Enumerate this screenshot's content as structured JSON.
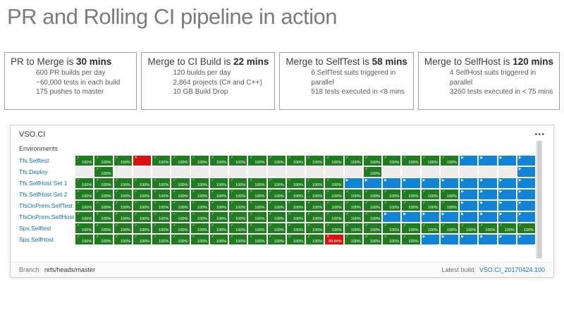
{
  "page": {
    "title": "PR and Rolling CI pipeline in action"
  },
  "stats": [
    {
      "title_prefix": "PR to Merge is ",
      "title_bold": "30 mins",
      "lines": [
        "600 PR builds per day",
        "~60,000 tests in each build",
        "175 pushes to master"
      ]
    },
    {
      "title_prefix": "Merge to CI Build is ",
      "title_bold": "22 mins",
      "lines": [
        "120 builds per day",
        "2,864 projects (C# and C++)",
        "10 GB Build Drop"
      ]
    },
    {
      "title_prefix": "Merge to SelfTest is ",
      "title_bold": "58 mins",
      "lines": [
        "6 SelfTest suits triggered in parallel",
        "518 tests executed in <8 mins"
      ]
    },
    {
      "title_prefix": "Merge to SelfHost is ",
      "title_bold": "120 mins",
      "lines": [
        "4 SelfHost suits triggered in parallel",
        "3260 tests executed in < 75 mins"
      ]
    }
  ],
  "panel": {
    "title": "VSO.CI",
    "menu_icon": "•••",
    "environments_label": "Environments",
    "rows": [
      {
        "label": "Tfs.Selftest",
        "cells": [
          [
            "g",
            "100%"
          ],
          [
            "g",
            "100%"
          ],
          [
            "g",
            "100%"
          ],
          [
            "r",
            ""
          ],
          [
            "g",
            "100%"
          ],
          [
            "g",
            "100%"
          ],
          [
            "g",
            "100%"
          ],
          [
            "g",
            "100%"
          ],
          [
            "g",
            "100%"
          ],
          [
            "g",
            "100%"
          ],
          [
            "g",
            "100%"
          ],
          [
            "g",
            "100%"
          ],
          [
            "g",
            "100%"
          ],
          [
            "g",
            "100%"
          ],
          [
            "g",
            "100%"
          ],
          [
            "g",
            "100%"
          ],
          [
            "g",
            "100%"
          ],
          [
            "g",
            "100%"
          ],
          [
            "g",
            "100%"
          ],
          [
            "g",
            "100%"
          ],
          [
            "b",
            ""
          ],
          [
            "b",
            ""
          ],
          [
            "b",
            ""
          ],
          [
            "b",
            ""
          ]
        ]
      },
      {
        "label": "Tfs.Deploy",
        "cells": [
          [
            "e",
            ""
          ],
          [
            "g",
            "100%"
          ],
          [
            "e",
            ""
          ],
          [
            "e",
            ""
          ],
          [
            "e",
            ""
          ],
          [
            "e",
            ""
          ],
          [
            "e",
            ""
          ],
          [
            "e",
            ""
          ],
          [
            "e",
            ""
          ],
          [
            "e",
            ""
          ],
          [
            "e",
            ""
          ],
          [
            "e",
            ""
          ],
          [
            "e",
            ""
          ],
          [
            "e",
            ""
          ],
          [
            "e",
            ""
          ],
          [
            "g",
            "100%"
          ],
          [
            "e",
            ""
          ],
          [
            "e",
            ""
          ],
          [
            "e",
            ""
          ],
          [
            "e",
            ""
          ],
          [
            "e",
            ""
          ],
          [
            "e",
            ""
          ],
          [
            "e",
            ""
          ],
          [
            "b",
            ""
          ]
        ]
      },
      {
        "label": "Tfs.SelfHost Set 1",
        "cells": [
          [
            "g",
            "100%"
          ],
          [
            "g",
            "100%"
          ],
          [
            "g",
            "100%"
          ],
          [
            "g",
            "100%"
          ],
          [
            "g",
            "100%"
          ],
          [
            "g",
            "100%"
          ],
          [
            "g",
            "100%"
          ],
          [
            "g",
            "100%"
          ],
          [
            "g",
            "100%"
          ],
          [
            "g",
            "100%"
          ],
          [
            "g",
            "100%"
          ],
          [
            "g",
            "100%"
          ],
          [
            "g",
            "100%"
          ],
          [
            "g",
            "100%"
          ],
          [
            "b",
            ""
          ],
          [
            "b",
            ""
          ],
          [
            "b",
            ""
          ],
          [
            "b",
            ""
          ],
          [
            "b",
            ""
          ],
          [
            "b",
            ""
          ],
          [
            "b",
            ""
          ],
          [
            "b",
            ""
          ],
          [
            "b",
            ""
          ],
          [
            "b",
            ""
          ]
        ]
      },
      {
        "label": "Tfs.SelfHost Set 2",
        "cells": [
          [
            "g",
            "100%"
          ],
          [
            "g",
            "100%"
          ],
          [
            "g",
            "100%"
          ],
          [
            "g",
            "100%"
          ],
          [
            "g",
            "100%"
          ],
          [
            "g",
            "100%"
          ],
          [
            "g",
            "100%"
          ],
          [
            "g",
            "100%"
          ],
          [
            "g",
            "100%"
          ],
          [
            "g",
            "100%"
          ],
          [
            "g",
            "100%"
          ],
          [
            "g",
            "100%"
          ],
          [
            "g",
            "100%"
          ],
          [
            "g",
            "100%"
          ],
          [
            "g",
            "100%"
          ],
          [
            "g",
            "100%"
          ],
          [
            "g",
            "100%"
          ],
          [
            "g",
            "100%"
          ],
          [
            "g",
            "100%"
          ],
          [
            "g",
            "100%"
          ],
          [
            "b",
            ""
          ],
          [
            "b",
            ""
          ],
          [
            "b",
            ""
          ],
          [
            "b",
            ""
          ]
        ]
      },
      {
        "label": "TfsOnPrem.SelfTest",
        "cells": [
          [
            "g",
            "100%"
          ],
          [
            "g",
            "100%"
          ],
          [
            "g",
            "100%"
          ],
          [
            "g",
            "100%"
          ],
          [
            "g",
            "100%"
          ],
          [
            "g",
            "100%"
          ],
          [
            "g",
            "100%"
          ],
          [
            "g",
            "100%"
          ],
          [
            "g",
            "100%"
          ],
          [
            "g",
            "100%"
          ],
          [
            "g",
            "100%"
          ],
          [
            "g",
            "100%"
          ],
          [
            "g",
            "100%"
          ],
          [
            "g",
            "100%"
          ],
          [
            "g",
            "100%"
          ],
          [
            "g",
            "100%"
          ],
          [
            "g",
            "100%"
          ],
          [
            "g",
            "100%"
          ],
          [
            "g",
            "100%"
          ],
          [
            "g",
            "100%"
          ],
          [
            "b",
            ""
          ],
          [
            "b",
            ""
          ],
          [
            "b",
            ""
          ],
          [
            "b",
            ""
          ]
        ]
      },
      {
        "label": "TfsOnPrem.SelfHost",
        "cells": [
          [
            "g",
            "100%"
          ],
          [
            "g",
            "100%"
          ],
          [
            "g",
            "100%"
          ],
          [
            "g",
            "100%"
          ],
          [
            "g",
            "100%"
          ],
          [
            "g",
            "100%"
          ],
          [
            "g",
            "100%"
          ],
          [
            "g",
            "100%"
          ],
          [
            "g",
            "100%"
          ],
          [
            "g",
            "100%"
          ],
          [
            "g",
            "100%"
          ],
          [
            "g",
            "100%"
          ],
          [
            "g",
            "100%"
          ],
          [
            "g",
            "100%"
          ],
          [
            "g",
            "100%"
          ],
          [
            "g",
            "100%"
          ],
          [
            "b",
            ""
          ],
          [
            "b",
            ""
          ],
          [
            "b",
            ""
          ],
          [
            "b",
            ""
          ],
          [
            "b",
            ""
          ],
          [
            "b",
            ""
          ],
          [
            "b",
            ""
          ],
          [
            "b",
            ""
          ]
        ]
      },
      {
        "label": "Sps.Selftest",
        "cells": [
          [
            "g",
            "100%"
          ],
          [
            "g",
            "100%"
          ],
          [
            "g",
            "100%"
          ],
          [
            "g",
            "100%"
          ],
          [
            "g",
            "100%"
          ],
          [
            "g",
            "100%"
          ],
          [
            "g",
            "100%"
          ],
          [
            "g",
            "100%"
          ],
          [
            "g",
            "100%"
          ],
          [
            "g",
            "100%"
          ],
          [
            "g",
            "100%"
          ],
          [
            "g",
            "100%"
          ],
          [
            "g",
            "100%"
          ],
          [
            "g",
            "100%"
          ],
          [
            "g",
            "100%"
          ],
          [
            "g",
            "100%"
          ],
          [
            "g",
            "100%"
          ],
          [
            "g",
            "100%"
          ],
          [
            "g",
            "100%"
          ],
          [
            "g",
            "100%"
          ],
          [
            "g",
            "100%"
          ],
          [
            "g",
            "100%"
          ],
          [
            "g",
            "100%"
          ],
          [
            "g",
            "100%"
          ]
        ]
      },
      {
        "label": "Sps.SelfHost",
        "cells": [
          [
            "g",
            "100%"
          ],
          [
            "g",
            "100%"
          ],
          [
            "g",
            "100%"
          ],
          [
            "g",
            "100%"
          ],
          [
            "g",
            "100%"
          ],
          [
            "g",
            "100%"
          ],
          [
            "g",
            "100%"
          ],
          [
            "g",
            "100%"
          ],
          [
            "g",
            "100%"
          ],
          [
            "g",
            "100%"
          ],
          [
            "g",
            "100%"
          ],
          [
            "g",
            "100%"
          ],
          [
            "g",
            "100%"
          ],
          [
            "r",
            "99.84%"
          ],
          [
            "g",
            "100%"
          ],
          [
            "g",
            "100%"
          ],
          [
            "g",
            "100%"
          ],
          [
            "g",
            "100%"
          ],
          [
            "b",
            ""
          ],
          [
            "b",
            ""
          ],
          [
            "b",
            ""
          ],
          [
            "b",
            ""
          ],
          [
            "b",
            ""
          ],
          [
            "b",
            ""
          ]
        ]
      }
    ],
    "footer": {
      "branch_label": "Branch:",
      "branch_value": "refs/heads/master",
      "latest_label": "Latest build:",
      "latest_value": "VSO.CI_20170424.100"
    }
  },
  "colors": {
    "pass": "#1f7d20",
    "fail": "#dd1111",
    "running": "#1284d7",
    "empty": "#ededed",
    "link": "#1272bd"
  },
  "icons": {
    "pass": "✓",
    "fail": "✕",
    "running": "▶"
  }
}
